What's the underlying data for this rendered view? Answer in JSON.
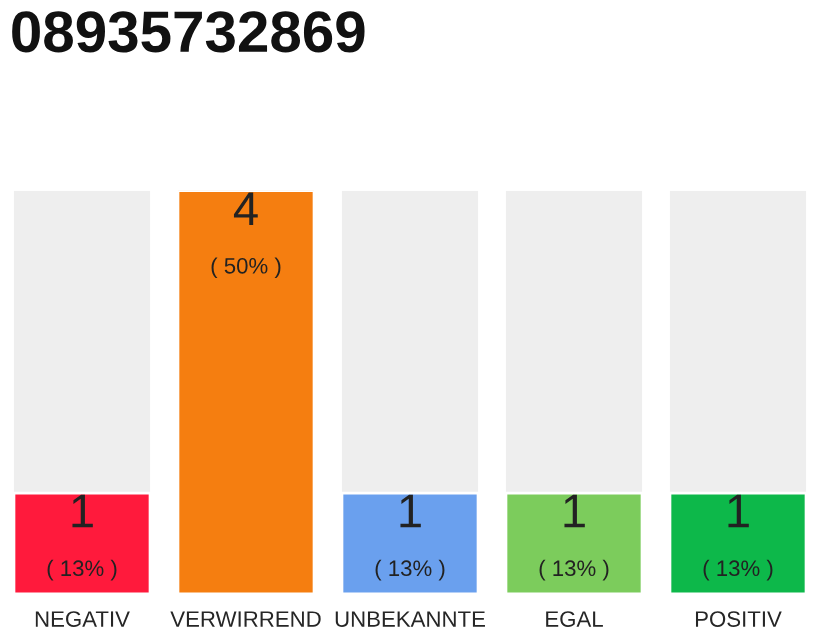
{
  "chart_data": {
    "type": "bar",
    "title": "08935732869",
    "categories": [
      "NEGATIV",
      "VERWIRREND",
      "UNBEKANNTE",
      "EGAL",
      "POSITIV"
    ],
    "values": [
      1,
      4,
      1,
      1,
      1
    ],
    "colors": [
      "#ff1a3c",
      "#f57e10",
      "#6aa0ee",
      "#7ccc5c",
      "#0db84a"
    ],
    "ylim": [
      0,
      4
    ],
    "tick_labels": "x",
    "grid": false,
    "legend": false,
    "value_labels": [
      "1\n( 13% )",
      "4\n( 50% )",
      "1\n( 13% )",
      "1\n( 13% )",
      "1\n( 13% )"
    ]
  }
}
